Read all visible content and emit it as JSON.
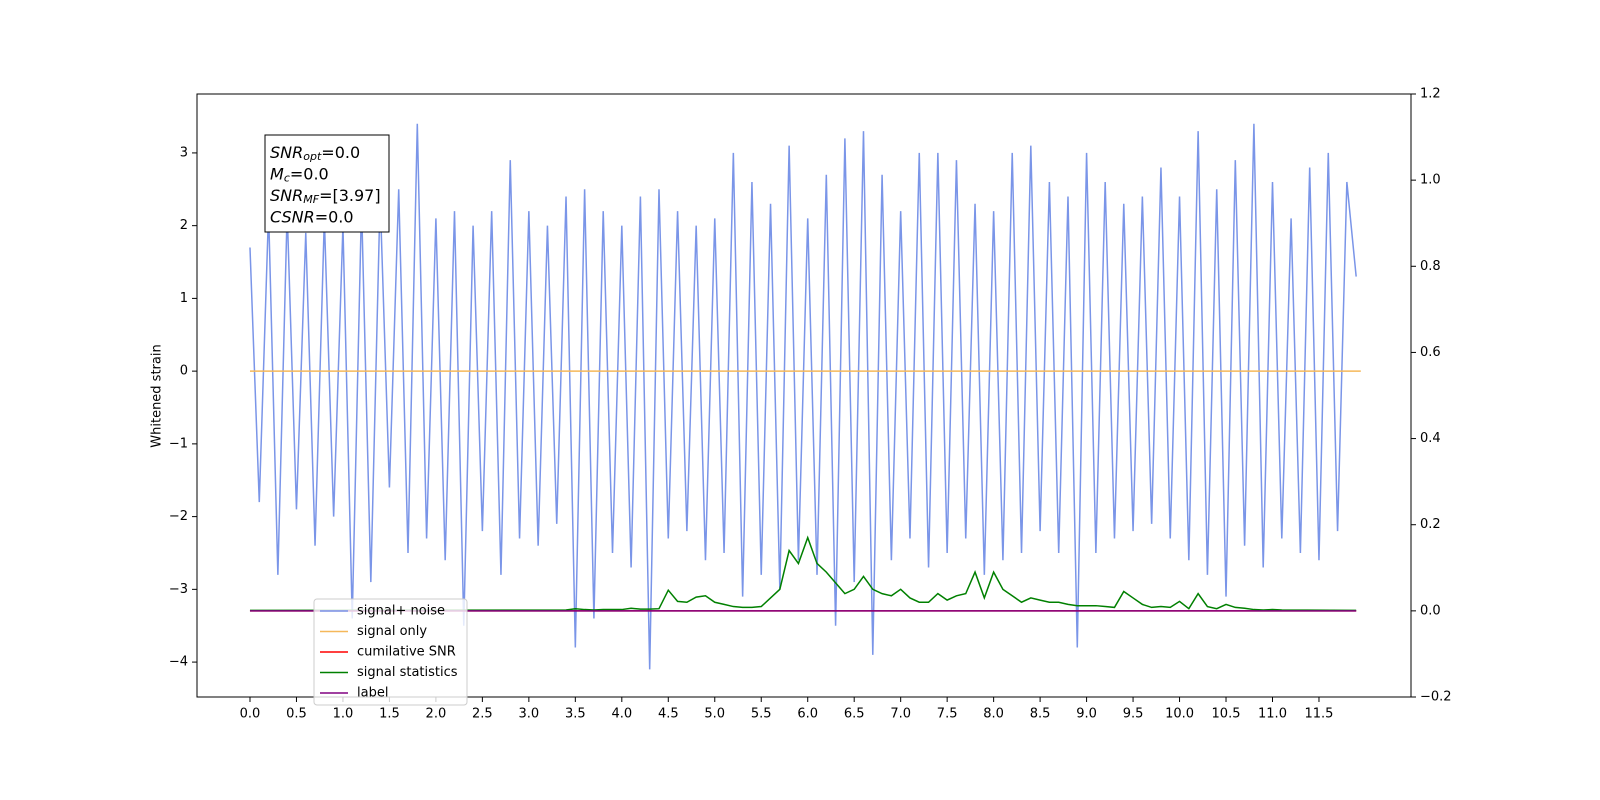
{
  "chart_data": {
    "type": "line",
    "y_label": "Whitened strain",
    "xlim": [
      -0.57,
      12.49
    ],
    "ylim": [
      -4.48,
      3.81
    ],
    "y2lim": [
      -0.2,
      1.2
    ],
    "xticks": [
      {
        "value": 0,
        "label": "0.0"
      },
      0.5,
      {
        "value": 1,
        "label": "1.0"
      },
      1.5,
      {
        "value": 2,
        "label": "2.0"
      },
      2.5,
      {
        "value": 3,
        "label": "3.0"
      },
      3.5,
      {
        "value": 4,
        "label": "4.0"
      },
      4.5,
      {
        "value": 5,
        "label": "5.0"
      },
      5.5,
      {
        "value": 6,
        "label": "6.0"
      },
      6.5,
      {
        "value": 7,
        "label": "7.0"
      },
      7.5,
      {
        "value": 8,
        "label": "8.0"
      },
      8.5,
      {
        "value": 9,
        "label": "9.0"
      },
      9.5,
      {
        "value": 10,
        "label": "10.0"
      },
      10.5,
      {
        "value": 11,
        "label": "11.0"
      },
      11.5
    ],
    "yticks": [
      {
        "value": -4,
        "label": "−4"
      },
      {
        "value": -3,
        "label": "−3"
      },
      {
        "value": -2,
        "label": "−2"
      },
      {
        "value": -1,
        "label": "−1"
      },
      0,
      1,
      2,
      3
    ],
    "y2ticks": [
      {
        "value": -0.2,
        "label": "−0.2"
      },
      {
        "value": 0,
        "label": "0.0"
      },
      0.2,
      0.4,
      0.6,
      0.8,
      {
        "value": 1,
        "label": "1.0"
      },
      1.2
    ],
    "annotations": [
      {
        "symbol": "SNR",
        "sub": "opt",
        "text": "=0.0"
      },
      {
        "symbol": "M",
        "sub": "c",
        "text": "=0.0"
      },
      {
        "symbol": "SNR",
        "sub": "MF",
        "text": "=[3.97]"
      },
      {
        "symbol": "CSNR",
        "sub": null,
        "text": "=0.0"
      }
    ],
    "series": [
      {
        "name": "signal+ noise",
        "color": "#7a95e8",
        "axis": "y",
        "x": [
          0.0,
          0.1,
          0.2,
          0.3,
          0.4,
          0.5,
          0.6,
          0.7,
          0.8,
          0.9,
          1.0,
          1.1,
          1.2,
          1.3,
          1.4,
          1.5,
          1.6,
          1.7,
          1.8,
          1.9,
          2.0,
          2.1,
          2.2,
          2.3,
          2.4,
          2.5,
          2.6,
          2.7,
          2.8,
          2.9,
          3.0,
          3.1,
          3.2,
          3.3,
          3.4,
          3.5,
          3.6,
          3.7,
          3.8,
          3.9,
          4.0,
          4.1,
          4.2,
          4.3,
          4.4,
          4.5,
          4.6,
          4.7,
          4.8,
          4.9,
          5.0,
          5.1,
          5.2,
          5.3,
          5.4,
          5.5,
          5.6,
          5.7,
          5.8,
          5.9,
          6.0,
          6.1,
          6.2,
          6.3,
          6.4,
          6.5,
          6.6,
          6.7,
          6.8,
          6.9,
          7.0,
          7.1,
          7.2,
          7.3,
          7.4,
          7.5,
          7.6,
          7.7,
          7.8,
          7.9,
          8.0,
          8.1,
          8.2,
          8.3,
          8.4,
          8.5,
          8.6,
          8.7,
          8.8,
          8.9,
          9.0,
          9.1,
          9.2,
          9.3,
          9.4,
          9.5,
          9.6,
          9.7,
          9.8,
          9.9,
          10.0,
          10.1,
          10.2,
          10.3,
          10.4,
          10.5,
          10.6,
          10.7,
          10.8,
          10.9,
          11.0,
          11.1,
          11.2,
          11.3,
          11.4,
          11.5,
          11.6,
          11.7,
          11.8,
          11.9
        ],
        "values": [
          1.7,
          -1.8,
          2.2,
          -2.8,
          2.2,
          -1.9,
          1.9,
          -2.4,
          2.1,
          -2.0,
          2.0,
          -3.4,
          2.3,
          -2.9,
          2.4,
          -1.6,
          2.5,
          -2.5,
          3.4,
          -2.3,
          2.1,
          -2.6,
          2.2,
          -3.5,
          2.0,
          -2.2,
          2.2,
          -2.8,
          2.9,
          -2.3,
          2.2,
          -2.4,
          2.0,
          -2.1,
          2.4,
          -3.8,
          2.5,
          -3.4,
          2.2,
          -2.5,
          2.0,
          -2.7,
          2.4,
          -4.1,
          2.5,
          -2.3,
          2.2,
          -2.2,
          2.0,
          -2.6,
          2.1,
          -2.5,
          3.0,
          -3.1,
          2.6,
          -2.8,
          2.3,
          -3.0,
          3.1,
          -2.6,
          2.1,
          -2.8,
          2.7,
          -3.5,
          3.2,
          -2.9,
          3.3,
          -3.9,
          2.7,
          -2.6,
          2.2,
          -2.3,
          3.0,
          -2.7,
          3.0,
          -2.5,
          2.9,
          -2.3,
          2.3,
          -2.8,
          2.2,
          -2.6,
          3.0,
          -2.5,
          3.1,
          -2.2,
          2.6,
          -2.5,
          2.4,
          -3.8,
          3.0,
          -2.5,
          2.6,
          -2.3,
          2.3,
          -2.2,
          2.4,
          -2.1,
          2.8,
          -2.3,
          2.4,
          -2.6,
          3.3,
          -2.8,
          2.5,
          -3.1,
          2.9,
          -2.4,
          3.4,
          -2.7,
          2.6,
          -2.3,
          2.1,
          -2.5,
          2.8,
          -2.6,
          3.0,
          -2.2,
          2.6,
          1.3
        ]
      },
      {
        "name": "signal only",
        "color": "#f5b85a",
        "axis": "y",
        "x": [
          0.0,
          11.95
        ],
        "values": [
          0,
          0
        ]
      },
      {
        "name": "cumilative SNR",
        "color": "#ff0000",
        "axis": "y2",
        "x": [
          0.0,
          11.9
        ],
        "values": [
          0,
          0
        ]
      },
      {
        "name": "signal statistics",
        "color": "#008000",
        "axis": "y2",
        "x": [
          0.0,
          3.4,
          3.5,
          3.6,
          3.7,
          3.8,
          3.9,
          4.0,
          4.1,
          4.2,
          4.3,
          4.4,
          4.5,
          4.6,
          4.7,
          4.8,
          4.9,
          5.0,
          5.1,
          5.2,
          5.3,
          5.4,
          5.5,
          5.6,
          5.7,
          5.8,
          5.9,
          6.0,
          6.1,
          6.2,
          6.3,
          6.4,
          6.5,
          6.6,
          6.7,
          6.8,
          6.9,
          7.0,
          7.1,
          7.2,
          7.3,
          7.4,
          7.5,
          7.6,
          7.7,
          7.8,
          7.9,
          8.0,
          8.1,
          8.2,
          8.3,
          8.4,
          8.5,
          8.6,
          8.7,
          8.8,
          8.9,
          9.0,
          9.1,
          9.2,
          9.3,
          9.4,
          9.5,
          9.6,
          9.7,
          9.8,
          9.9,
          10.0,
          10.1,
          10.2,
          10.3,
          10.4,
          10.5,
          10.6,
          10.7,
          10.8,
          10.9,
          11.0,
          11.1,
          11.9
        ],
        "values": [
          0.001,
          0.002,
          0.005,
          0.003,
          0.002,
          0.003,
          0.003,
          0.003,
          0.006,
          0.004,
          0.004,
          0.005,
          0.048,
          0.022,
          0.02,
          0.032,
          0.035,
          0.02,
          0.015,
          0.01,
          0.008,
          0.008,
          0.01,
          0.03,
          0.05,
          0.14,
          0.11,
          0.17,
          0.11,
          0.09,
          0.065,
          0.04,
          0.05,
          0.08,
          0.05,
          0.04,
          0.035,
          0.05,
          0.03,
          0.02,
          0.02,
          0.04,
          0.025,
          0.035,
          0.04,
          0.09,
          0.03,
          0.09,
          0.05,
          0.035,
          0.02,
          0.03,
          0.025,
          0.02,
          0.02,
          0.015,
          0.012,
          0.012,
          0.012,
          0.01,
          0.008,
          0.045,
          0.03,
          0.015,
          0.008,
          0.01,
          0.008,
          0.022,
          0.005,
          0.04,
          0.01,
          0.005,
          0.015,
          0.008,
          0.006,
          0.003,
          0.002,
          0.003,
          0.002,
          0.001
        ]
      },
      {
        "name": "label",
        "color": "#800080",
        "axis": "y2",
        "x": [
          0.0,
          11.9
        ],
        "values": [
          0,
          0
        ]
      }
    ]
  }
}
